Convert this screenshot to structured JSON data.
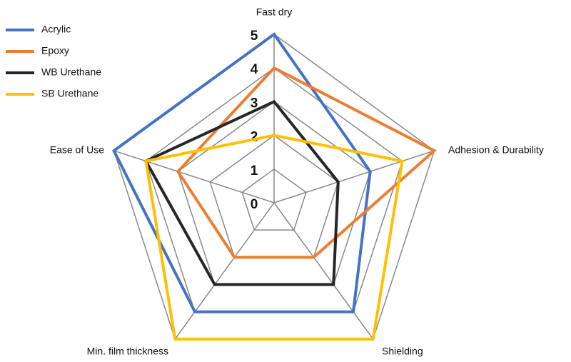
{
  "chart_data": {
    "type": "radar",
    "categories": [
      "Fast dry",
      "Adhesion & Durability",
      "Shielding",
      "Min. film thickness",
      "Ease of Use"
    ],
    "ylim": [
      0,
      5
    ],
    "yticks": [
      0,
      1,
      2,
      3,
      4,
      5
    ],
    "grid": true,
    "legend": "top-left",
    "series": [
      {
        "name": "Acrylic",
        "color": "#4472c4",
        "values": [
          5,
          3,
          4,
          4,
          5
        ]
      },
      {
        "name": "Epoxy",
        "color": "#ed7d31",
        "values": [
          4,
          5,
          2,
          2,
          3
        ]
      },
      {
        "name": "WB Urethane",
        "color": "#262626",
        "values": [
          3,
          2,
          3,
          3,
          4
        ]
      },
      {
        "name": "SB Urethane",
        "color": "#ffc000",
        "values": [
          2,
          4,
          5,
          5,
          4
        ]
      }
    ]
  }
}
